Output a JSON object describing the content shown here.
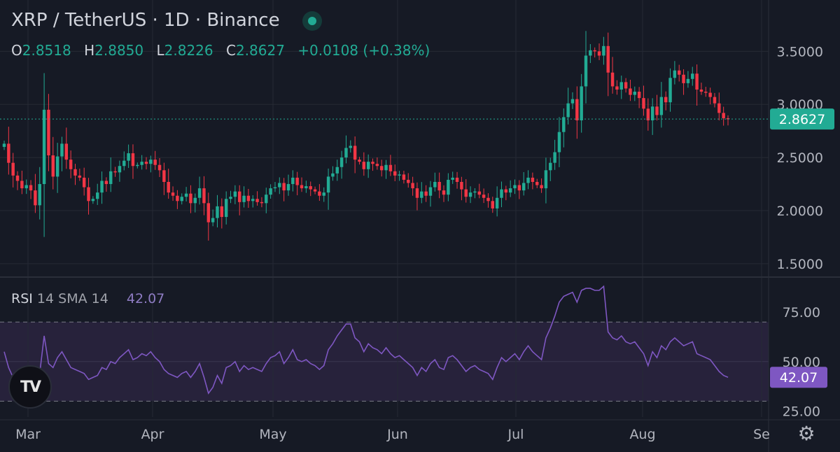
{
  "header": {
    "symbol_title": "XRP / TetherUS · 1D · Binance",
    "ohlc": {
      "o_label": "O",
      "o_value": "2.8518",
      "h_label": "H",
      "h_value": "2.8850",
      "l_label": "L",
      "l_value": "2.8226",
      "c_label": "C",
      "c_value": "2.8627",
      "change": "+0.0108 (+0.38%)"
    }
  },
  "rsi_legend": {
    "label": "RSI",
    "params": "14 SMA 14",
    "value": "42.07"
  },
  "price_badge": "2.8627",
  "rsi_badge": "42.07",
  "logo_text": "TV",
  "colors": {
    "background": "#161a25",
    "up": "#22ab94",
    "down": "#f23645",
    "rsi_line": "#7e57c2",
    "rsi_band": "#2a2540",
    "price_badge": "#22ab94",
    "rsi_badge": "#7e57c2",
    "grid": "#262a35"
  },
  "icons": {
    "settings": "gear-icon",
    "live": "live-status-dot",
    "logo": "tradingview-logo"
  },
  "chart_data": [
    {
      "type": "candlestick",
      "title": "XRP / TetherUS · 1D · Binance",
      "ylim": [
        1.4,
        3.72
      ],
      "y_ticks": [
        "1.5000",
        "2.0000",
        "2.5000",
        "3.0000",
        "3.5000"
      ],
      "x_ticks": [
        "Mar",
        "Apr",
        "May",
        "Jun",
        "Jul",
        "Aug",
        "Se"
      ],
      "last_price": 2.8627,
      "approximate_daily_closes": [
        2.63,
        2.45,
        2.33,
        2.28,
        2.21,
        2.24,
        2.19,
        2.05,
        2.25,
        2.95,
        2.52,
        2.32,
        2.51,
        2.63,
        2.48,
        2.39,
        2.33,
        2.31,
        2.22,
        2.09,
        2.11,
        2.17,
        2.28,
        2.25,
        2.37,
        2.36,
        2.42,
        2.47,
        2.54,
        2.42,
        2.43,
        2.46,
        2.44,
        2.48,
        2.43,
        2.38,
        2.27,
        2.17,
        2.14,
        2.09,
        2.13,
        2.16,
        2.07,
        2.12,
        2.21,
        2.07,
        1.89,
        1.93,
        2.04,
        1.94,
        2.11,
        2.13,
        2.18,
        2.08,
        2.14,
        2.09,
        2.11,
        2.08,
        2.07,
        2.15,
        2.21,
        2.22,
        2.26,
        2.19,
        2.25,
        2.31,
        2.24,
        2.21,
        2.23,
        2.2,
        2.18,
        2.14,
        2.17,
        2.32,
        2.35,
        2.41,
        2.5,
        2.59,
        2.61,
        2.48,
        2.46,
        2.39,
        2.46,
        2.44,
        2.42,
        2.38,
        2.43,
        2.37,
        2.33,
        2.34,
        2.29,
        2.26,
        2.21,
        2.12,
        2.18,
        2.14,
        2.22,
        2.27,
        2.19,
        2.15,
        2.29,
        2.31,
        2.27,
        2.2,
        2.13,
        2.17,
        2.18,
        2.15,
        2.12,
        2.09,
        2.02,
        2.12,
        2.2,
        2.17,
        2.21,
        2.24,
        2.19,
        2.26,
        2.31,
        2.27,
        2.24,
        2.21,
        2.38,
        2.45,
        2.55,
        2.74,
        2.88,
        3.01,
        3.05,
        2.85,
        3.17,
        3.46,
        3.51,
        3.5,
        3.46,
        3.55,
        3.3,
        3.17,
        3.14,
        3.21,
        3.15,
        3.09,
        3.12,
        3.06,
        2.96,
        2.85,
        2.98,
        2.9,
        3.07,
        3.02,
        3.25,
        3.32,
        3.28,
        3.2,
        3.24,
        3.29,
        3.14,
        3.12,
        3.11,
        3.07,
        3.01,
        2.92,
        2.87,
        2.86
      ]
    },
    {
      "type": "line",
      "title": "RSI 14 SMA 14",
      "ylim": [
        22,
        92
      ],
      "y_ticks": [
        "25.00",
        "50.00",
        "75.00"
      ],
      "bands": [
        30,
        70
      ],
      "last_value": 42.07,
      "approximate_values": [
        55,
        47,
        42,
        40,
        38,
        36,
        39,
        37,
        44,
        63,
        49,
        47,
        52,
        55,
        51,
        47,
        46,
        45,
        44,
        41,
        42,
        43,
        47,
        46,
        50,
        49,
        52,
        54,
        56,
        51,
        52,
        54,
        53,
        55,
        52,
        50,
        46,
        44,
        43,
        42,
        44,
        45,
        42,
        45,
        49,
        42,
        34,
        37,
        43,
        39,
        47,
        48,
        50,
        45,
        48,
        46,
        47,
        46,
        45,
        49,
        52,
        53,
        55,
        49,
        52,
        56,
        51,
        50,
        51,
        49,
        48,
        46,
        48,
        56,
        59,
        63,
        66,
        69,
        69,
        62,
        60,
        55,
        59,
        57,
        56,
        54,
        57,
        54,
        52,
        53,
        51,
        49,
        47,
        43,
        47,
        45,
        49,
        51,
        47,
        46,
        52,
        53,
        51,
        48,
        45,
        47,
        48,
        46,
        45,
        44,
        41,
        47,
        52,
        50,
        52,
        54,
        51,
        55,
        58,
        55,
        53,
        51,
        62,
        67,
        73,
        80,
        83,
        84,
        85,
        80,
        86,
        87,
        87,
        86,
        86,
        88,
        65,
        62,
        61,
        63,
        60,
        59,
        60,
        57,
        54,
        48,
        55,
        52,
        58,
        56,
        60,
        62,
        60,
        58,
        59,
        60,
        54,
        53,
        52,
        51,
        48,
        45,
        43,
        42.07
      ]
    }
  ]
}
